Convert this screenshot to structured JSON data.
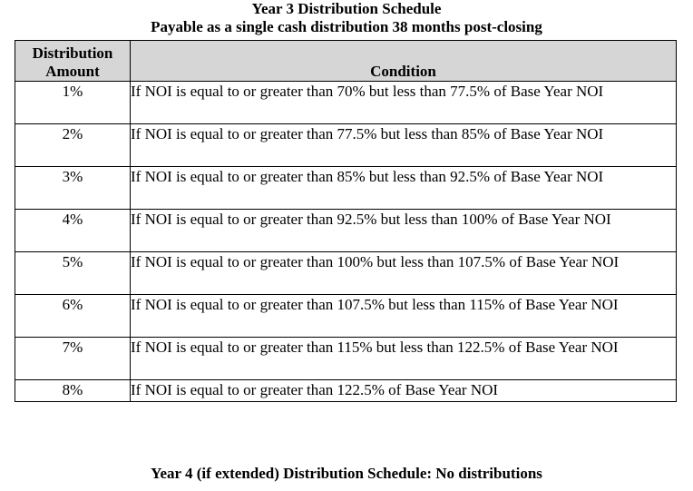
{
  "doc": {
    "title": "Year 3 Distribution Schedule",
    "subtitle": "Payable as a single cash distribution 38 months post-closing",
    "footer": "Year 4 (if extended) Distribution Schedule: No distributions"
  },
  "table": {
    "header_amount_line1": "Distribution",
    "header_amount_line2": "Amount",
    "header_condition": "Condition",
    "rows": [
      {
        "amount": "1%",
        "condition": "If NOI is equal to or greater than 70% but less than 77.5% of Base Year NOI"
      },
      {
        "amount": "2%",
        "condition": "If NOI is equal to or greater than 77.5% but less than 85% of Base Year NOI"
      },
      {
        "amount": "3%",
        "condition": "If NOI is equal to or greater than 85% but less than 92.5% of Base Year NOI"
      },
      {
        "amount": "4%",
        "condition": "If NOI is equal to or greater than 92.5% but less than 100% of Base Year NOI"
      },
      {
        "amount": "5%",
        "condition": "If NOI is equal to or greater than 100% but less than 107.5% of Base Year NOI"
      },
      {
        "amount": "6%",
        "condition": "If NOI is equal to or greater than 107.5% but less than 115% of Base Year NOI"
      },
      {
        "amount": "7%",
        "condition": "If NOI is equal to or greater than 115% but less than 122.5% of Base Year NOI"
      },
      {
        "amount": "8%",
        "condition": "If NOI is equal to or greater than 122.5% of Base Year NOI"
      }
    ]
  }
}
